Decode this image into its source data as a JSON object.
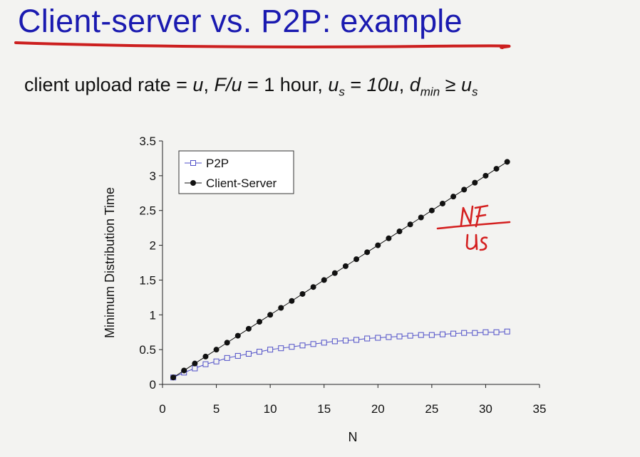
{
  "slide": {
    "title": "Client-server vs. P2P: example",
    "params": {
      "part1": "client upload rate = ",
      "u1": "u",
      "comma1": ",  ",
      "fu": "F/u",
      "part2": " = 1 hour,  ",
      "us_base": "u",
      "us_sub": "s",
      "part3": " = ",
      "ten_u": "10u",
      "comma3": ",  ",
      "d_base": "d",
      "d_sub": "min",
      "ge": " ≥ ",
      "us2_base": "u",
      "us2_sub": "s"
    }
  },
  "colors": {
    "title": "#1a1ab0",
    "underline": "#cc1f1f",
    "p2p": "#5050c8",
    "client_server": "#111111",
    "annotation": "#d42020"
  },
  "chart_data": {
    "type": "line",
    "xlabel": "N",
    "ylabel": "Minimum Distribution Time",
    "xlim": [
      0,
      35
    ],
    "ylim": [
      0,
      3.5
    ],
    "xticks": [
      0,
      5,
      10,
      15,
      20,
      25,
      30,
      35
    ],
    "yticks": [
      0,
      0.5,
      1,
      1.5,
      2,
      2.5,
      3,
      3.5
    ],
    "grid": false,
    "legend_position": "top-left",
    "x": [
      1,
      2,
      3,
      4,
      5,
      6,
      7,
      8,
      9,
      10,
      11,
      12,
      13,
      14,
      15,
      16,
      17,
      18,
      19,
      20,
      21,
      22,
      23,
      24,
      25,
      26,
      27,
      28,
      29,
      30,
      31,
      32
    ],
    "series": [
      {
        "name": "P2P",
        "marker": "open-square",
        "color": "#5050c8",
        "values": [
          0.1,
          0.17,
          0.23,
          0.29,
          0.33,
          0.38,
          0.41,
          0.44,
          0.47,
          0.5,
          0.52,
          0.54,
          0.56,
          0.58,
          0.6,
          0.62,
          0.63,
          0.64,
          0.66,
          0.67,
          0.68,
          0.69,
          0.7,
          0.71,
          0.71,
          0.72,
          0.73,
          0.74,
          0.74,
          0.75,
          0.75,
          0.76
        ]
      },
      {
        "name": "Client-Server",
        "marker": "filled-circle",
        "color": "#111111",
        "values": [
          0.1,
          0.2,
          0.3,
          0.4,
          0.5,
          0.6,
          0.7,
          0.8,
          0.9,
          1.0,
          1.1,
          1.2,
          1.3,
          1.4,
          1.5,
          1.6,
          1.7,
          1.8,
          1.9,
          2.0,
          2.1,
          2.2,
          2.3,
          2.4,
          2.5,
          2.6,
          2.7,
          2.8,
          2.9,
          3.0,
          3.1,
          3.2
        ]
      }
    ]
  },
  "annotation": {
    "numerator": "NF",
    "denominator": "us"
  }
}
